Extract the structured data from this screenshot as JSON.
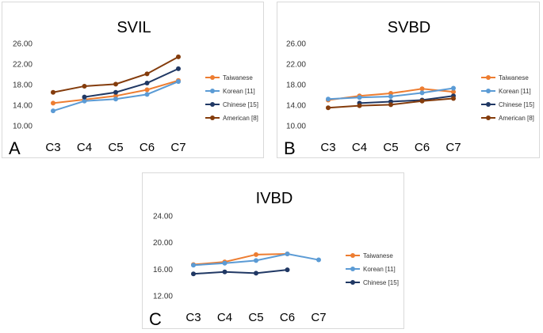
{
  "chart_data": [
    {
      "id": "A",
      "panel_label": "A",
      "type": "line",
      "title": "SVIL",
      "categories": [
        "C3",
        "C4",
        "C5",
        "C6",
        "C7"
      ],
      "ylim": [
        10,
        26
      ],
      "yticks": [
        "10.00",
        "14.00",
        "18.00",
        "22.00",
        "26.00"
      ],
      "ytick_values": [
        10,
        14,
        18,
        22,
        26
      ],
      "series": [
        {
          "name": "Taiwanese",
          "color": "#ed7d31",
          "values": [
            14.4,
            15.1,
            15.8,
            17.0,
            18.8
          ]
        },
        {
          "name": "Korean [11]",
          "color": "#5b9bd5",
          "values": [
            12.9,
            14.8,
            15.2,
            16.1,
            18.6
          ]
        },
        {
          "name": "Chinese [15]",
          "color": "#203864",
          "values": [
            null,
            15.6,
            16.5,
            18.3,
            21.1
          ]
        },
        {
          "name": "American [8]",
          "color": "#843c0c",
          "values": [
            16.5,
            17.7,
            18.1,
            20.1,
            23.4
          ]
        }
      ]
    },
    {
      "id": "B",
      "panel_label": "B",
      "type": "line",
      "title": "SVBD",
      "categories": [
        "C3",
        "C4",
        "C5",
        "C6",
        "C7"
      ],
      "ylim": [
        10,
        26
      ],
      "yticks": [
        "10.00",
        "14.00",
        "18.00",
        "22.00",
        "26.00"
      ],
      "ytick_values": [
        10,
        14,
        18,
        22,
        26
      ],
      "series": [
        {
          "name": "Taiwanese",
          "color": "#ed7d31",
          "values": [
            15.0,
            15.8,
            16.3,
            17.2,
            16.6
          ]
        },
        {
          "name": "Korean [11]",
          "color": "#5b9bd5",
          "values": [
            15.2,
            15.5,
            15.7,
            16.4,
            17.3
          ]
        },
        {
          "name": "Chinese [15]",
          "color": "#203864",
          "values": [
            null,
            14.4,
            14.7,
            15.0,
            15.8
          ]
        },
        {
          "name": "American [8]",
          "color": "#843c0c",
          "values": [
            13.5,
            13.9,
            14.1,
            14.8,
            15.3
          ]
        }
      ]
    },
    {
      "id": "C",
      "panel_label": "C",
      "type": "line",
      "title": "IVBD",
      "categories": [
        "C3",
        "C4",
        "C5",
        "C6",
        "C7"
      ],
      "ylim": [
        12,
        24
      ],
      "yticks": [
        "12.00",
        "16.00",
        "20.00",
        "24.00"
      ],
      "ytick_values": [
        12,
        16,
        20,
        24
      ],
      "series": [
        {
          "name": "Taiwanese",
          "color": "#ed7d31",
          "values": [
            16.7,
            17.1,
            18.2,
            18.3,
            null
          ]
        },
        {
          "name": "Korean [11]",
          "color": "#5b9bd5",
          "values": [
            16.6,
            16.9,
            17.3,
            18.3,
            17.4
          ]
        },
        {
          "name": "Chinese [15]",
          "color": "#203864",
          "values": [
            15.3,
            15.6,
            15.4,
            15.9,
            null
          ]
        }
      ]
    }
  ]
}
